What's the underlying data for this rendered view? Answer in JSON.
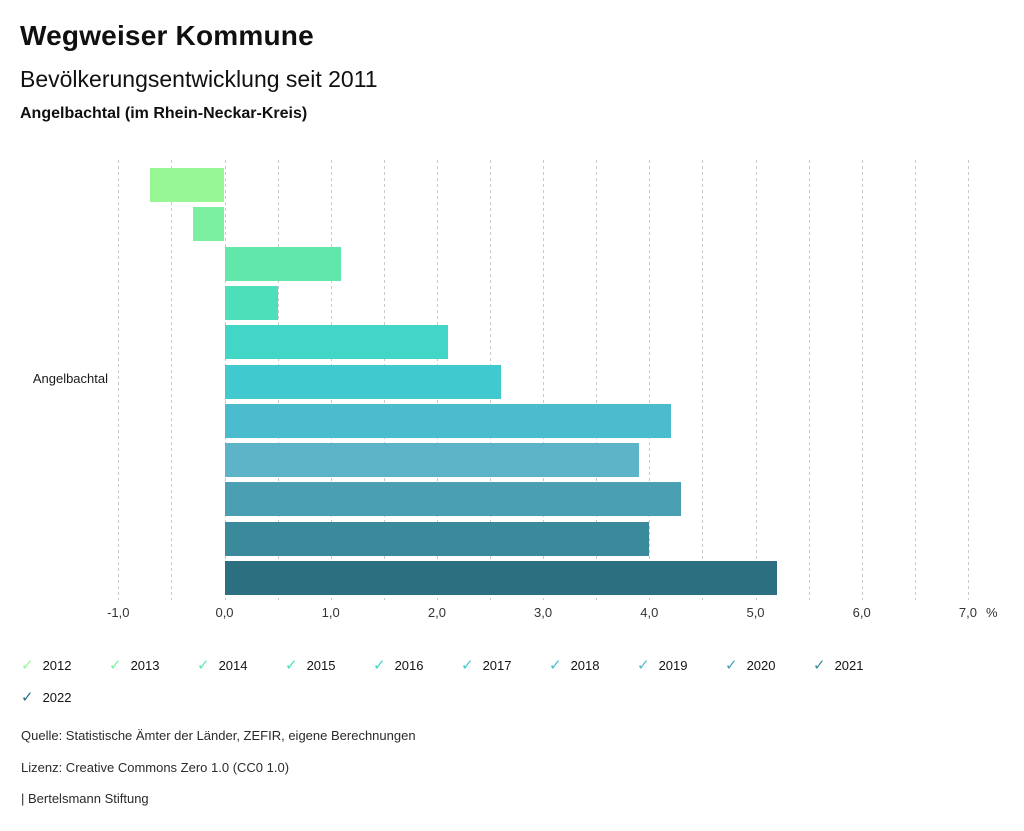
{
  "header": {
    "title": "Wegweiser Kommune",
    "subtitle": "Bevölkerungsentwicklung seit 2011",
    "region": "Angelbachtal (im Rhein-Neckar-Kreis)"
  },
  "chart_data": {
    "type": "bar",
    "orientation": "horizontal",
    "title": "Bevölkerungsentwicklung seit 2011",
    "category_label": "Angelbachtal",
    "series": [
      {
        "name": "2012",
        "value": -0.7,
        "color": "#98f795"
      },
      {
        "name": "2013",
        "value": -0.3,
        "color": "#7cf0a1"
      },
      {
        "name": "2014",
        "value": 1.1,
        "color": "#62e7aa"
      },
      {
        "name": "2015",
        "value": 0.5,
        "color": "#4cdfb9"
      },
      {
        "name": "2016",
        "value": 2.1,
        "color": "#41d6c6"
      },
      {
        "name": "2017",
        "value": 2.6,
        "color": "#40c9ce"
      },
      {
        "name": "2018",
        "value": 4.2,
        "color": "#4bbccd"
      },
      {
        "name": "2019",
        "value": 3.9,
        "color": "#5db3c7"
      },
      {
        "name": "2020",
        "value": 4.3,
        "color": "#4aa0b2"
      },
      {
        "name": "2021",
        "value": 4.0,
        "color": "#3b8a9b"
      },
      {
        "name": "2022",
        "value": 5.2,
        "color": "#2b6f80"
      }
    ],
    "xlim": [
      -1.0,
      7.0
    ],
    "grid_step": 0.5,
    "grid": true,
    "ticks": [
      {
        "value": -1,
        "label": "-1,0"
      },
      {
        "value": 0,
        "label": "0,0"
      },
      {
        "value": 1,
        "label": "1,0"
      },
      {
        "value": 2,
        "label": "2,0"
      },
      {
        "value": 3,
        "label": "3,0"
      },
      {
        "value": 4,
        "label": "4,0"
      },
      {
        "value": 5,
        "label": "5,0"
      },
      {
        "value": 6,
        "label": "6,0"
      },
      {
        "value": 7,
        "label": "7,0"
      }
    ],
    "unit_label": "%",
    "legend_position": "bottom"
  },
  "footer": {
    "source": "Quelle: Statistische Ämter der Länder, ZEFIR, eigene Berechnungen",
    "license": "Lizenz: Creative Commons Zero 1.0 (CC0 1.0)",
    "attribution": "| Bertelsmann Stiftung"
  }
}
